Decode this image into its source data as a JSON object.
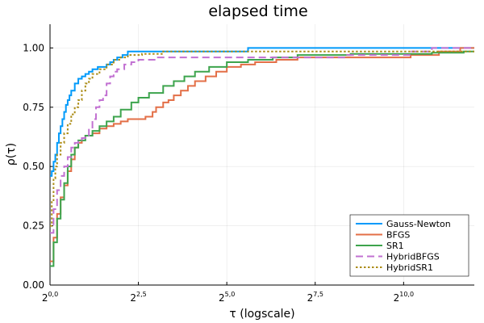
{
  "chart_data": {
    "type": "line",
    "title": "elapsed time",
    "xlabel": "τ (logscale)",
    "ylabel": "ρ(τ)",
    "x_scale": "log2",
    "xlim": [
      0,
      12
    ],
    "ylim": [
      0,
      1.1
    ],
    "x_ticks": [
      {
        "value": 0,
        "base": "2",
        "exp": "0,0"
      },
      {
        "value": 2.5,
        "base": "2",
        "exp": "2,5"
      },
      {
        "value": 5,
        "base": "2",
        "exp": "5,0"
      },
      {
        "value": 7.5,
        "base": "2",
        "exp": "7,5"
      },
      {
        "value": 10,
        "base": "2",
        "exp": "10,0"
      }
    ],
    "y_ticks": [
      {
        "value": 0,
        "label": "0.00"
      },
      {
        "value": 0.25,
        "label": "0.25"
      },
      {
        "value": 0.5,
        "label": "0.50"
      },
      {
        "value": 0.75,
        "label": "0.75"
      },
      {
        "value": 1.0,
        "label": "1.00"
      }
    ],
    "grid": true,
    "legend_position": "bottom-right",
    "series": [
      {
        "name": "Gauss-Newton",
        "color": "#009AFA",
        "dash": "solid",
        "points": [
          [
            0,
            0.46
          ],
          [
            0.05,
            0.48
          ],
          [
            0.1,
            0.52
          ],
          [
            0.15,
            0.55
          ],
          [
            0.2,
            0.6
          ],
          [
            0.25,
            0.64
          ],
          [
            0.3,
            0.67
          ],
          [
            0.35,
            0.7
          ],
          [
            0.4,
            0.73
          ],
          [
            0.45,
            0.76
          ],
          [
            0.5,
            0.78
          ],
          [
            0.55,
            0.8
          ],
          [
            0.6,
            0.82
          ],
          [
            0.7,
            0.85
          ],
          [
            0.8,
            0.87
          ],
          [
            0.9,
            0.88
          ],
          [
            1.0,
            0.89
          ],
          [
            1.1,
            0.9
          ],
          [
            1.2,
            0.91
          ],
          [
            1.35,
            0.92
          ],
          [
            1.6,
            0.93
          ],
          [
            1.7,
            0.94
          ],
          [
            1.8,
            0.95
          ],
          [
            1.9,
            0.96
          ],
          [
            2.05,
            0.97
          ],
          [
            2.2,
            0.985
          ],
          [
            5.55,
            0.985
          ],
          [
            5.6,
            1.0
          ],
          [
            12,
            1.0
          ]
        ]
      },
      {
        "name": "BFGS",
        "color": "#E36F47",
        "dash": "solid",
        "points": [
          [
            0,
            0.1
          ],
          [
            0.1,
            0.2
          ],
          [
            0.2,
            0.3
          ],
          [
            0.3,
            0.37
          ],
          [
            0.4,
            0.42
          ],
          [
            0.5,
            0.48
          ],
          [
            0.6,
            0.53
          ],
          [
            0.7,
            0.58
          ],
          [
            0.8,
            0.6
          ],
          [
            0.9,
            0.62
          ],
          [
            1.0,
            0.63
          ],
          [
            1.2,
            0.64
          ],
          [
            1.4,
            0.66
          ],
          [
            1.6,
            0.67
          ],
          [
            1.8,
            0.68
          ],
          [
            2.0,
            0.69
          ],
          [
            2.2,
            0.7
          ],
          [
            2.7,
            0.71
          ],
          [
            2.9,
            0.73
          ],
          [
            3.0,
            0.75
          ],
          [
            3.2,
            0.77
          ],
          [
            3.35,
            0.78
          ],
          [
            3.5,
            0.8
          ],
          [
            3.7,
            0.82
          ],
          [
            3.9,
            0.84
          ],
          [
            4.1,
            0.86
          ],
          [
            4.4,
            0.88
          ],
          [
            4.7,
            0.9
          ],
          [
            5.0,
            0.92
          ],
          [
            5.4,
            0.93
          ],
          [
            5.8,
            0.94
          ],
          [
            6.4,
            0.95
          ],
          [
            7.0,
            0.96
          ],
          [
            10.0,
            0.96
          ],
          [
            10.2,
            0.97
          ],
          [
            11.0,
            0.985
          ],
          [
            11.6,
            1.0
          ],
          [
            12,
            1.0
          ]
        ]
      },
      {
        "name": "SR1",
        "color": "#3DA44D",
        "dash": "solid",
        "points": [
          [
            0,
            0.08
          ],
          [
            0.1,
            0.18
          ],
          [
            0.2,
            0.28
          ],
          [
            0.3,
            0.36
          ],
          [
            0.4,
            0.43
          ],
          [
            0.5,
            0.5
          ],
          [
            0.6,
            0.55
          ],
          [
            0.7,
            0.58
          ],
          [
            0.8,
            0.61
          ],
          [
            1.0,
            0.63
          ],
          [
            1.2,
            0.65
          ],
          [
            1.4,
            0.67
          ],
          [
            1.6,
            0.69
          ],
          [
            1.8,
            0.71
          ],
          [
            2.0,
            0.74
          ],
          [
            2.3,
            0.77
          ],
          [
            2.5,
            0.79
          ],
          [
            2.8,
            0.81
          ],
          [
            3.2,
            0.84
          ],
          [
            3.5,
            0.86
          ],
          [
            3.8,
            0.88
          ],
          [
            4.1,
            0.9
          ],
          [
            4.5,
            0.92
          ],
          [
            5.0,
            0.94
          ],
          [
            5.6,
            0.95
          ],
          [
            6.3,
            0.96
          ],
          [
            7.0,
            0.97
          ],
          [
            8.5,
            0.975
          ],
          [
            10.8,
            0.98
          ],
          [
            11.7,
            0.985
          ],
          [
            12,
            0.985
          ]
        ]
      },
      {
        "name": "HybridBFGS",
        "color": "#C271D2",
        "dash": "dashed",
        "points": [
          [
            0,
            0.22
          ],
          [
            0.1,
            0.32
          ],
          [
            0.2,
            0.4
          ],
          [
            0.3,
            0.46
          ],
          [
            0.4,
            0.5
          ],
          [
            0.5,
            0.54
          ],
          [
            0.6,
            0.58
          ],
          [
            0.7,
            0.6
          ],
          [
            0.8,
            0.61
          ],
          [
            0.9,
            0.62
          ],
          [
            1.0,
            0.63
          ],
          [
            1.1,
            0.66
          ],
          [
            1.2,
            0.7
          ],
          [
            1.3,
            0.75
          ],
          [
            1.4,
            0.78
          ],
          [
            1.5,
            0.8
          ],
          [
            1.6,
            0.85
          ],
          [
            1.7,
            0.88
          ],
          [
            1.8,
            0.9
          ],
          [
            1.9,
            0.91
          ],
          [
            2.1,
            0.93
          ],
          [
            2.3,
            0.94
          ],
          [
            2.5,
            0.95
          ],
          [
            3.0,
            0.96
          ],
          [
            8.2,
            0.96
          ],
          [
            8.4,
            0.97
          ],
          [
            10.2,
            0.985
          ],
          [
            10.8,
            1.0
          ],
          [
            12,
            1.0
          ]
        ]
      },
      {
        "name": "HybridSR1",
        "color": "#AC8D18",
        "dash": "dotted",
        "points": [
          [
            0,
            0.25
          ],
          [
            0.05,
            0.35
          ],
          [
            0.1,
            0.45
          ],
          [
            0.15,
            0.5
          ],
          [
            0.2,
            0.55
          ],
          [
            0.3,
            0.6
          ],
          [
            0.4,
            0.64
          ],
          [
            0.5,
            0.68
          ],
          [
            0.6,
            0.72
          ],
          [
            0.7,
            0.75
          ],
          [
            0.8,
            0.78
          ],
          [
            0.9,
            0.82
          ],
          [
            1.0,
            0.85
          ],
          [
            1.1,
            0.87
          ],
          [
            1.2,
            0.89
          ],
          [
            1.4,
            0.91
          ],
          [
            1.6,
            0.93
          ],
          [
            1.8,
            0.95
          ],
          [
            2.0,
            0.96
          ],
          [
            2.2,
            0.97
          ],
          [
            2.6,
            0.975
          ],
          [
            3.2,
            0.985
          ],
          [
            12,
            0.985
          ]
        ]
      }
    ]
  }
}
